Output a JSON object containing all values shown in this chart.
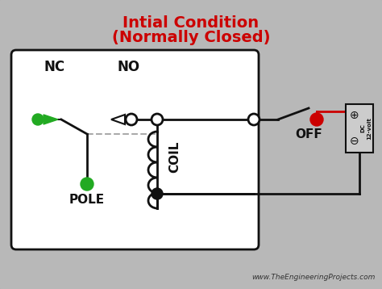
{
  "title_line1": "Intial Condition",
  "title_line2": "(Normally Closed)",
  "title_color": "#cc0000",
  "bg_color": "#b8b8b8",
  "box_border_color": "#111111",
  "label_NC": "NC",
  "label_NO": "NO",
  "label_POLE": "POLE",
  "label_COIL": "COIL",
  "label_OFF": "OFF",
  "watermark": "www.TheEngineeringProjects.com",
  "green_color": "#22aa22",
  "red_color": "#cc0000",
  "dark_color": "#111111",
  "gray_dashed": "#aaaaaa",
  "white_color": "#ffffff",
  "outer_border_color": "#7a0000"
}
